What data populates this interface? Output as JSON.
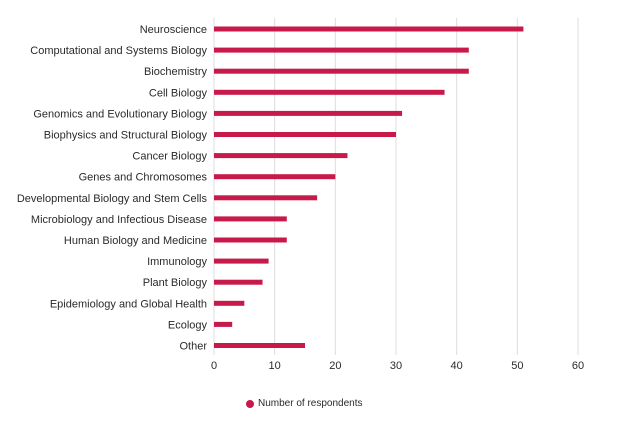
{
  "chart_data": {
    "type": "bar",
    "orientation": "horizontal",
    "categories": [
      "Neuroscience",
      "Computational and Systems Biology",
      "Biochemistry",
      "Cell Biology",
      "Genomics and Evolutionary Biology",
      "Biophysics and Structural Biology",
      "Cancer Biology",
      "Genes and Chromosomes",
      "Developmental Biology and Stem Cells",
      "Microbiology and Infectious Disease",
      "Human Biology and Medicine",
      "Immunology",
      "Plant Biology",
      "Epidemiology and Global Health",
      "Ecology",
      "Other"
    ],
    "series": [
      {
        "name": "Number of respondents",
        "values": [
          51,
          42,
          42,
          38,
          31,
          30,
          22,
          20,
          17,
          12,
          12,
          9,
          8,
          5,
          3,
          15
        ]
      }
    ],
    "xlim": [
      0,
      60
    ],
    "xticks": [
      0,
      10,
      20,
      30,
      40,
      50,
      60
    ],
    "grid": "vertical",
    "legend_position": "bottom",
    "color": "#c8194b"
  }
}
